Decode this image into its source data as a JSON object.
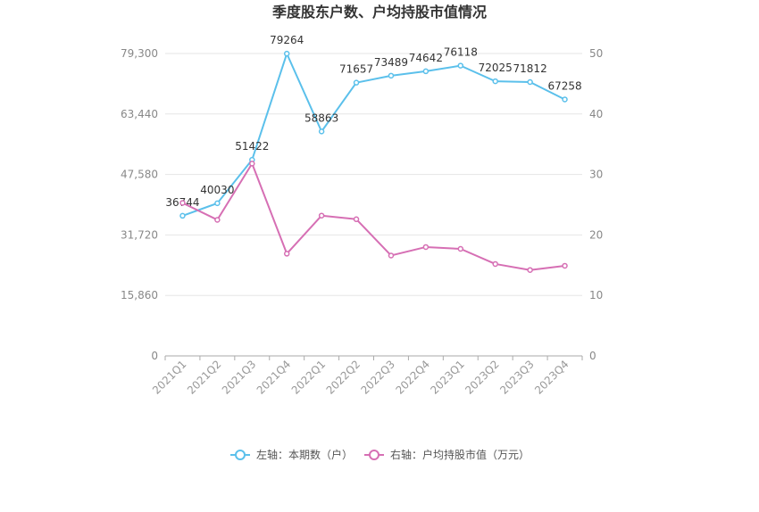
{
  "chart_data": {
    "type": "line",
    "title": "季度股东户数、户均持股市值情况",
    "categories": [
      "2021Q1",
      "2021Q2",
      "2021Q3",
      "2021Q4",
      "2022Q1",
      "2022Q2",
      "2022Q3",
      "2022Q4",
      "2023Q1",
      "2023Q2",
      "2023Q3",
      "2023Q4"
    ],
    "left_axis": {
      "min": 0,
      "max": 79300,
      "ticks": [
        0,
        15860,
        31720,
        47580,
        63440,
        79300
      ],
      "tick_labels": [
        "0",
        "15,860",
        "31,720",
        "47,580",
        "63,440",
        "79,300"
      ]
    },
    "right_axis": {
      "min": 0,
      "max": 50,
      "ticks": [
        0,
        10,
        20,
        30,
        40,
        50
      ],
      "tick_labels": [
        "0",
        "10",
        "20",
        "30",
        "40",
        "50"
      ]
    },
    "series": [
      {
        "name": "左轴：本期数（户）",
        "axis": "left",
        "color": "#5bc0eb",
        "values": [
          36744,
          40030,
          51422,
          79264,
          58863,
          71657,
          73489,
          74642,
          76118,
          72025,
          71812,
          67258
        ],
        "data_labels": [
          "36744",
          "40030",
          "51422",
          "79264",
          "58863",
          "71657",
          "73489",
          "74642",
          "76118",
          "72025",
          "71812",
          "67258"
        ]
      },
      {
        "name": "右轴：户均持股市值（万元）",
        "axis": "right",
        "color": "#d66fb4",
        "values": [
          25.3,
          22.5,
          31.8,
          16.9,
          23.2,
          22.6,
          16.6,
          18.0,
          17.7,
          15.2,
          14.2,
          14.9
        ]
      }
    ],
    "grid": true,
    "legend_position": "bottom"
  }
}
